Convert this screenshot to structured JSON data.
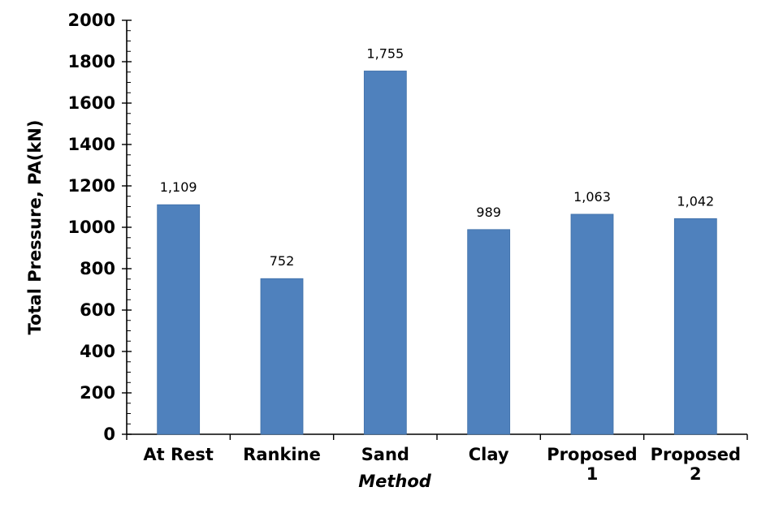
{
  "chart_data": {
    "type": "bar",
    "categories": [
      [
        "At Rest"
      ],
      [
        "Rankine"
      ],
      [
        "Sand"
      ],
      [
        "Clay"
      ],
      [
        "Proposed",
        "1"
      ],
      [
        "Proposed",
        "2"
      ]
    ],
    "values": [
      1109,
      752,
      1755,
      989,
      1063,
      1042
    ],
    "data_labels": [
      "1,109",
      "752",
      "1,755",
      "989",
      "1,063",
      "1,042"
    ],
    "xlabel": "Method",
    "ylabel": "Total Pressure, PA(kN)",
    "ylim": [
      0,
      2000
    ],
    "yticks": [
      0,
      200,
      400,
      600,
      800,
      1000,
      1200,
      1400,
      1600,
      1800,
      2000
    ],
    "y_minor_step": 50,
    "grid": false,
    "legend": "none",
    "bar_color": "#4f81bd",
    "bar_stroke": "#3f6fa8"
  }
}
